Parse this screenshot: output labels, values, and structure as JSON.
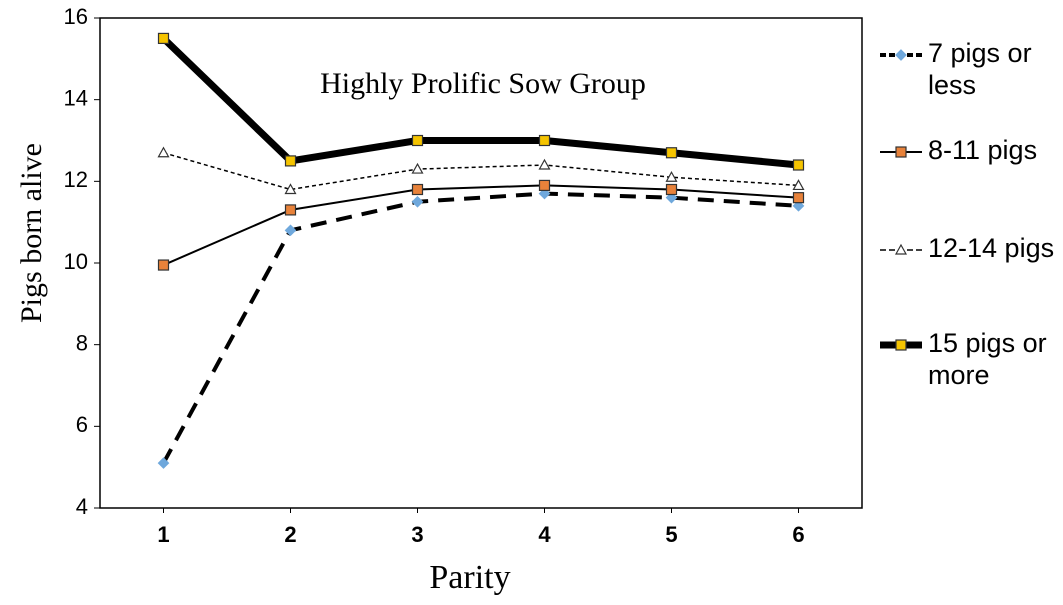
{
  "chart_data": {
    "type": "line",
    "annotation": "Highly Prolific Sow Group",
    "x_label": "Parity",
    "y_label": "Pigs born alive",
    "x": [
      1,
      2,
      3,
      4,
      5,
      6
    ],
    "xlim": [
      0.5,
      6.5
    ],
    "xticks": [
      1,
      2,
      3,
      4,
      5,
      6
    ],
    "ylim": [
      4,
      16
    ],
    "yticks": [
      4,
      6,
      8,
      10,
      12,
      14,
      16
    ],
    "series": [
      {
        "name": "7 pigs or less",
        "color": "#000000",
        "marker": "diamond",
        "marker_color": "#6fa8dc",
        "dash": "16,10",
        "line_width": 4,
        "values": [
          5.1,
          10.8,
          11.5,
          11.7,
          11.6,
          11.4
        ]
      },
      {
        "name": "8-11 pigs",
        "color": "#000000",
        "marker": "square",
        "marker_color": "#e8823a",
        "dash": "none",
        "line_width": 2,
        "values": [
          9.95,
          11.3,
          11.8,
          11.9,
          11.8,
          11.6
        ]
      },
      {
        "name": "12-14 pigs",
        "color": "#000000",
        "marker": "triangle",
        "marker_color": "#ffffff",
        "dash": "4,3",
        "line_width": 1.5,
        "values": [
          12.7,
          11.8,
          12.3,
          12.4,
          12.1,
          11.9
        ]
      },
      {
        "name": "15 pigs or more",
        "color": "#000000",
        "marker": "square",
        "marker_color": "#f5c400",
        "dash": "none",
        "line_width": 7,
        "values": [
          15.5,
          12.5,
          13.0,
          13.0,
          12.7,
          12.4
        ]
      }
    ]
  }
}
